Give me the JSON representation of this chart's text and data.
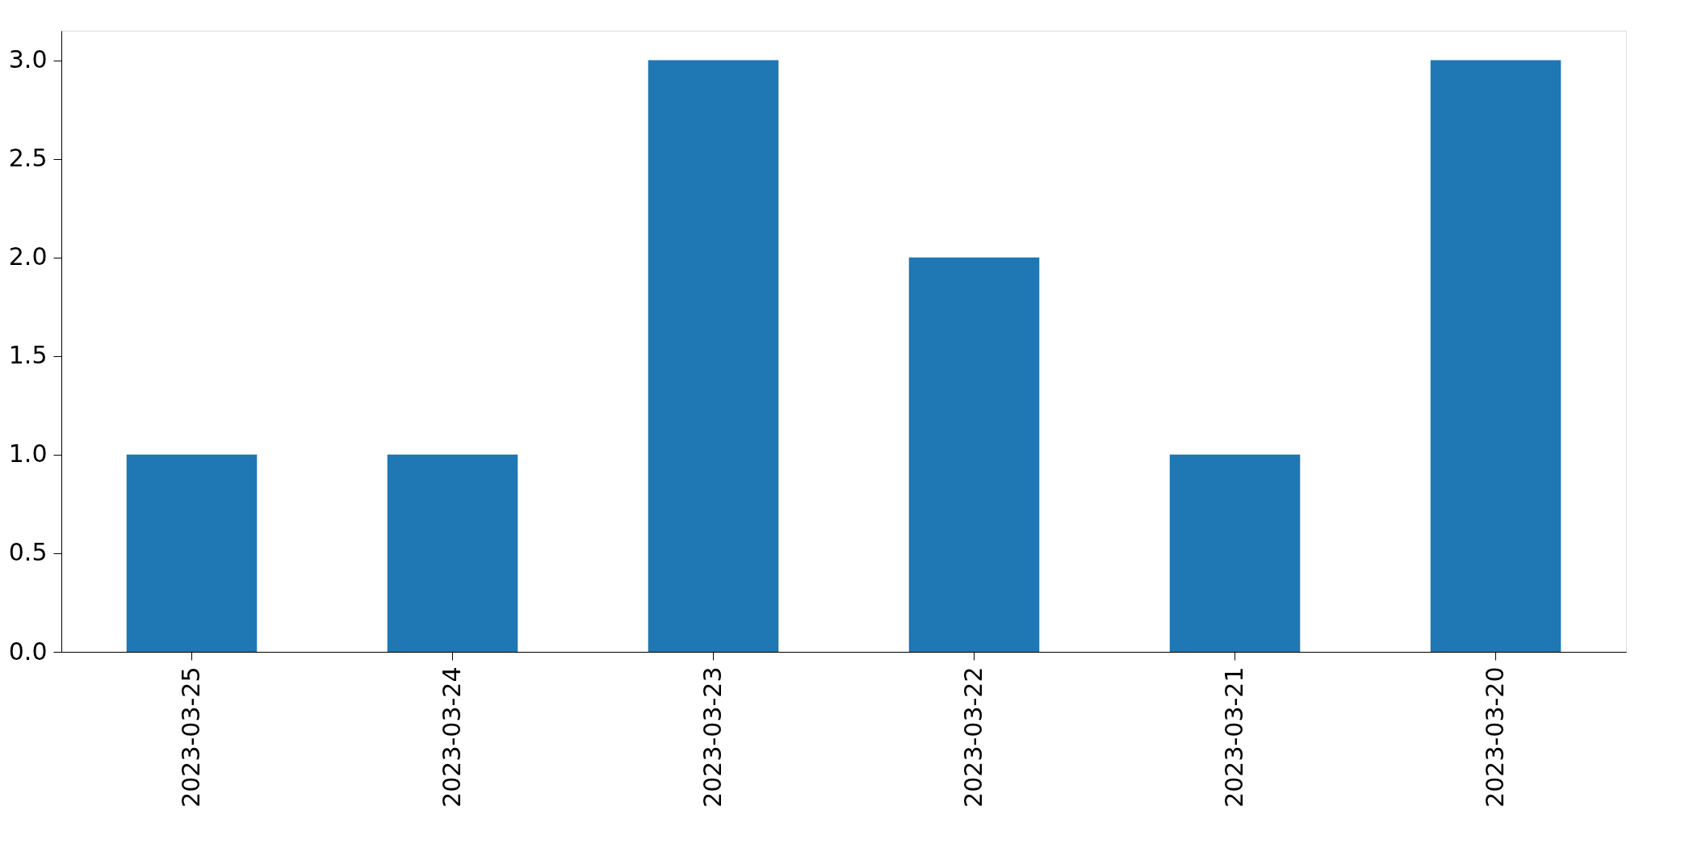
{
  "chart_data": {
    "type": "bar",
    "categories": [
      "2023-03-25",
      "2023-03-24",
      "2023-03-23",
      "2023-03-22",
      "2023-03-21",
      "2023-03-20"
    ],
    "values": [
      1,
      1,
      3,
      2,
      1,
      3
    ],
    "color": "#1f77b4",
    "ylim": [
      0,
      3.15
    ],
    "yticks": [
      {
        "value": 0,
        "label": "0.0"
      },
      {
        "value": 0.5,
        "label": "0.5"
      },
      {
        "value": 1,
        "label": "1.0"
      },
      {
        "value": 1.5,
        "label": "1.5"
      },
      {
        "value": 2,
        "label": "2.0"
      },
      {
        "value": 2.5,
        "label": "2.5"
      },
      {
        "value": 3,
        "label": "3.0"
      }
    ],
    "grid": false
  }
}
